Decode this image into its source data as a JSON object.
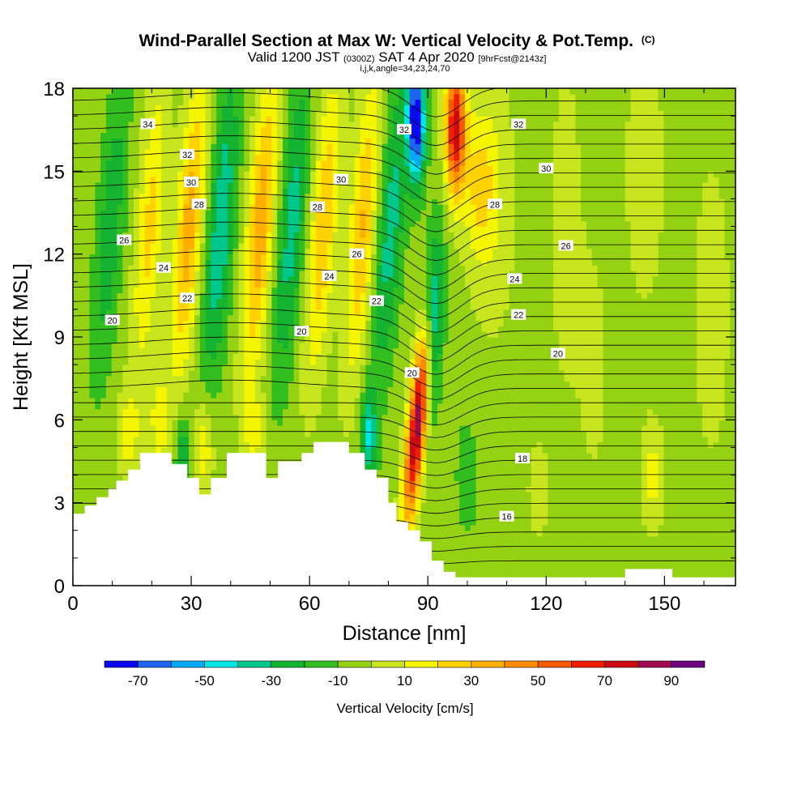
{
  "header": {
    "title_main": "Wind-Parallel Section at Max W: Vertical Velocity & Pot.Temp.",
    "title_mark": "(C)",
    "valid_prefix": "Valid 1200 JST",
    "valid_utc": "(0300Z)",
    "valid_date": "SAT 4 Apr 2020",
    "valid_fcst": "[9hrFcst@2143z]",
    "grid_info": "i,j,k,angle=34,23,24,70"
  },
  "chart_data": {
    "type": "heatmap",
    "xlabel": "Distance [nm]",
    "ylabel": "Height [Kft MSL]",
    "xlim": [
      0,
      168
    ],
    "ylim": [
      0,
      18
    ],
    "x_ticks": [
      0,
      30,
      60,
      90,
      120,
      150
    ],
    "x_tick_labels": [
      "0",
      "30",
      "60",
      "90",
      "120",
      "150"
    ],
    "y_ticks": [
      0,
      3,
      6,
      9,
      12,
      15,
      18
    ],
    "y_tick_labels": [
      "0",
      "3",
      "6",
      "9",
      "12",
      "15",
      "18"
    ],
    "colorbar": {
      "label": "Vertical Velocity [cm/s]",
      "bounds": [
        -80,
        -70,
        -60,
        -50,
        -40,
        -30,
        -20,
        -10,
        0,
        10,
        20,
        30,
        40,
        50,
        60,
        70,
        80,
        90,
        100
      ],
      "tick_values": [
        -70,
        -50,
        -30,
        -10,
        10,
        30,
        50,
        70,
        90
      ],
      "tick_labels": [
        "-70",
        "-50",
        "-30",
        "-10",
        "10",
        "30",
        "50",
        "70",
        "90"
      ],
      "colors": [
        "#0a0af0",
        "#1e64f0",
        "#00aaf5",
        "#00e6e6",
        "#00c88c",
        "#14b432",
        "#32be1e",
        "#96d214",
        "#c8e61e",
        "#f5f500",
        "#ffd200",
        "#ffaf00",
        "#ff8c00",
        "#f55a00",
        "#f01e00",
        "#cd0a14",
        "#a00a50",
        "#6e0082"
      ]
    },
    "field_features": [
      {
        "kind": "updraft",
        "x": 88,
        "y_bottom": 2.5,
        "y_top": 10.5,
        "peak": 80
      },
      {
        "kind": "updraft",
        "x": 97,
        "y_bottom": 13,
        "y_top": 18,
        "peak": 70
      },
      {
        "kind": "downdraft",
        "x": 87,
        "y_bottom": 14,
        "y_top": 18,
        "peak": -70
      },
      {
        "kind": "downdraft",
        "x": 93,
        "y_bottom": 7,
        "y_top": 13,
        "peak": -50
      }
    ],
    "theta_contour_labels": [
      {
        "text": "34",
        "x": 19,
        "y": 16.7
      },
      {
        "text": "32",
        "x": 29,
        "y": 15.6
      },
      {
        "text": "30",
        "x": 30,
        "y": 14.6
      },
      {
        "text": "28",
        "x": 32,
        "y": 13.8
      },
      {
        "text": "26",
        "x": 13,
        "y": 12.5
      },
      {
        "text": "24",
        "x": 23,
        "y": 11.5
      },
      {
        "text": "22",
        "x": 29,
        "y": 10.4
      },
      {
        "text": "20",
        "x": 10,
        "y": 9.6
      },
      {
        "text": "28",
        "x": 62,
        "y": 13.7
      },
      {
        "text": "30",
        "x": 68,
        "y": 14.7
      },
      {
        "text": "26",
        "x": 72,
        "y": 12.0
      },
      {
        "text": "24",
        "x": 65,
        "y": 11.2
      },
      {
        "text": "22",
        "x": 77,
        "y": 10.3
      },
      {
        "text": "20",
        "x": 58,
        "y": 9.2
      },
      {
        "text": "32",
        "x": 84,
        "y": 16.5
      },
      {
        "text": "20",
        "x": 86,
        "y": 7.7
      },
      {
        "text": "32",
        "x": 113,
        "y": 16.7
      },
      {
        "text": "30",
        "x": 120,
        "y": 15.1
      },
      {
        "text": "28",
        "x": 107,
        "y": 13.8
      },
      {
        "text": "26",
        "x": 125,
        "y": 12.3
      },
      {
        "text": "24",
        "x": 112,
        "y": 11.1
      },
      {
        "text": "22",
        "x": 113,
        "y": 9.8
      },
      {
        "text": "20",
        "x": 123,
        "y": 8.4
      },
      {
        "text": "18",
        "x": 114,
        "y": 4.6
      },
      {
        "text": "16",
        "x": 110,
        "y": 2.5
      }
    ],
    "terrain_profile": [
      [
        0,
        2.6
      ],
      [
        3,
        2.6
      ],
      [
        3,
        2.9
      ],
      [
        6,
        2.9
      ],
      [
        6,
        3.2
      ],
      [
        9,
        3.2
      ],
      [
        9,
        3.5
      ],
      [
        11,
        3.5
      ],
      [
        11,
        3.8
      ],
      [
        14,
        3.8
      ],
      [
        14,
        4.2
      ],
      [
        17,
        4.2
      ],
      [
        17,
        4.8
      ],
      [
        25,
        4.8
      ],
      [
        25,
        4.4
      ],
      [
        29,
        4.4
      ],
      [
        29,
        3.9
      ],
      [
        32,
        3.9
      ],
      [
        32,
        3.3
      ],
      [
        35,
        3.3
      ],
      [
        35,
        3.9
      ],
      [
        39,
        3.9
      ],
      [
        39,
        4.8
      ],
      [
        49,
        4.8
      ],
      [
        49,
        3.9
      ],
      [
        52,
        3.9
      ],
      [
        52,
        4.5
      ],
      [
        58,
        4.5
      ],
      [
        58,
        4.8
      ],
      [
        61,
        4.8
      ],
      [
        61,
        5.2
      ],
      [
        70,
        5.2
      ],
      [
        70,
        4.8
      ],
      [
        74,
        4.8
      ],
      [
        74,
        4.2
      ],
      [
        77,
        4.2
      ],
      [
        77,
        3.9
      ],
      [
        80,
        3.9
      ],
      [
        80,
        3.0
      ],
      [
        82,
        3.0
      ],
      [
        82,
        2.3
      ],
      [
        85,
        2.3
      ],
      [
        85,
        2.0
      ],
      [
        88,
        2.0
      ],
      [
        88,
        1.6
      ],
      [
        91,
        1.6
      ],
      [
        91,
        0.9
      ],
      [
        94,
        0.9
      ],
      [
        94,
        0.5
      ],
      [
        97,
        0.5
      ],
      [
        97,
        0.3
      ],
      [
        140,
        0.3
      ],
      [
        140,
        0.6
      ],
      [
        152,
        0.6
      ],
      [
        152,
        0.3
      ],
      [
        168,
        0.3
      ]
    ]
  }
}
